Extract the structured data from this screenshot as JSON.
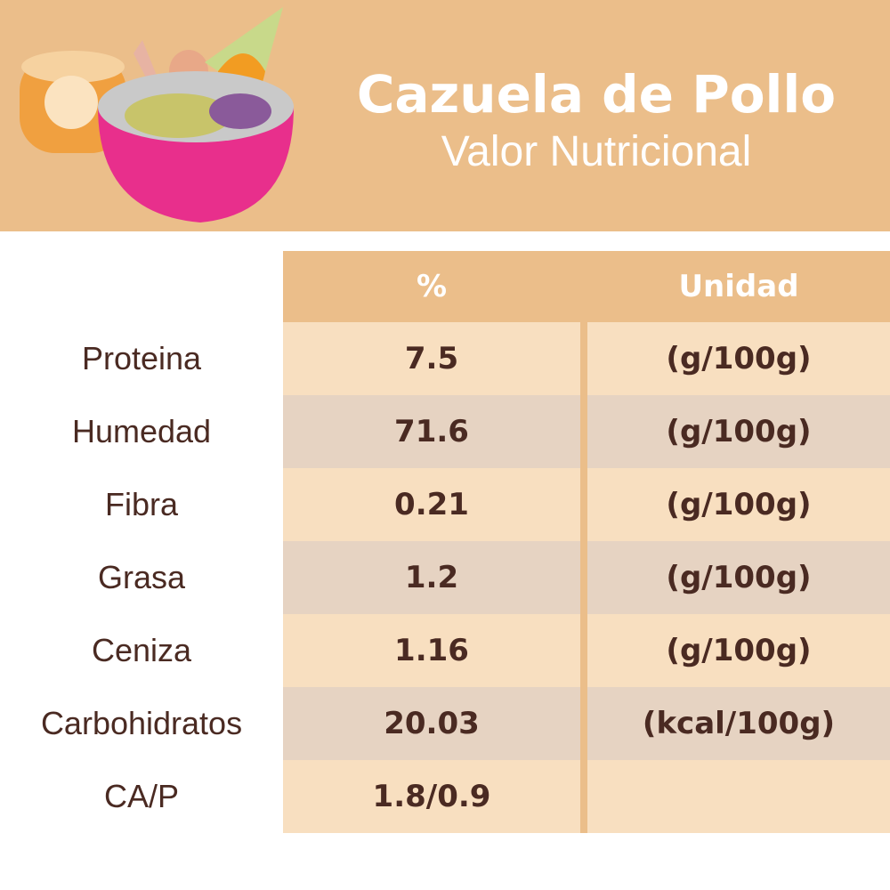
{
  "header": {
    "title": "Cazuela de Pollo",
    "subtitle": "Valor Nutricional"
  },
  "table": {
    "columns": [
      "%",
      "Unidad"
    ],
    "rows": [
      [
        "Proteina",
        "7.5",
        "(g/100g)"
      ],
      [
        "Humedad",
        "71.6",
        "(g/100g)"
      ],
      [
        "Fibra",
        "0.21",
        "(g/100g)"
      ],
      [
        "Grasa",
        "1.2",
        "(g/100g)"
      ],
      [
        "Ceniza",
        "1.16",
        "(g/100g)"
      ],
      [
        "Carbohidratos",
        "20.03",
        "(kcal/100g)"
      ],
      [
        "CA/P",
        "1.8/0.9"
      ]
    ]
  }
}
